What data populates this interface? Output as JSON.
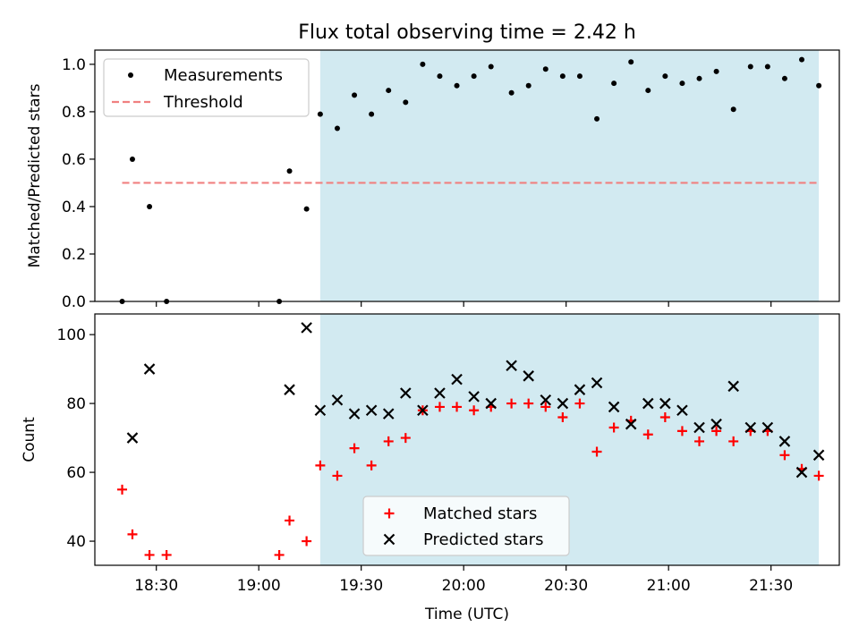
{
  "figure_title": "Flux total observing time = 2.42 h",
  "colors": {
    "shade": "#add8e6",
    "threshold": "#f08080",
    "matched": "#ff0000",
    "predicted": "#000000",
    "measurement": "#000000"
  },
  "chart_data": [
    {
      "type": "scatter",
      "panel": "top",
      "ylabel": "Matched/Predicted stars",
      "xlim": [
        "18:12",
        "21:50"
      ],
      "ylim": [
        0,
        1.06
      ],
      "yticks": [
        0.0,
        0.2,
        0.4,
        0.6,
        0.8,
        1.0
      ],
      "ytick_labels": [
        "0.0",
        "0.2",
        "0.4",
        "0.6",
        "0.8",
        "1.0"
      ],
      "shaded_region": {
        "from": "19:18",
        "to": "21:44"
      },
      "legend": {
        "location": "top-left",
        "entries": [
          "Measurements",
          "Threshold"
        ]
      },
      "threshold": {
        "name": "Threshold",
        "value": 0.5,
        "x_from": "18:20",
        "x_to": "21:44"
      },
      "series": [
        {
          "name": "Measurements",
          "x": [
            "18:20",
            "18:23",
            "18:28",
            "18:33",
            "19:06",
            "19:09",
            "19:14",
            "19:18",
            "19:23",
            "19:28",
            "19:33",
            "19:38",
            "19:43",
            "19:48",
            "19:53",
            "19:58",
            "20:03",
            "20:08",
            "20:14",
            "20:19",
            "20:24",
            "20:29",
            "20:34",
            "20:39",
            "20:44",
            "20:49",
            "20:54",
            "20:59",
            "21:04",
            "21:09",
            "21:14",
            "21:19",
            "21:24",
            "21:29",
            "21:34",
            "21:39",
            "21:44"
          ],
          "y": [
            0.0,
            0.6,
            0.4,
            0.0,
            0.0,
            0.55,
            0.39,
            0.79,
            0.73,
            0.87,
            0.79,
            0.89,
            0.84,
            1.0,
            0.95,
            0.91,
            0.95,
            0.99,
            0.88,
            0.91,
            0.98,
            0.95,
            0.95,
            0.77,
            0.92,
            1.01,
            0.89,
            0.95,
            0.92,
            0.94,
            0.97,
            0.81,
            0.99,
            0.99,
            0.94,
            1.02,
            0.91
          ]
        }
      ]
    },
    {
      "type": "scatter",
      "panel": "bottom",
      "xlabel": "Time (UTC)",
      "ylabel": "Count",
      "xlim": [
        "18:12",
        "21:50"
      ],
      "ylim": [
        33,
        106
      ],
      "yticks": [
        40,
        60,
        80,
        100
      ],
      "ytick_labels": [
        "40",
        "60",
        "80",
        "100"
      ],
      "xticks": [
        "18:30",
        "19:00",
        "19:30",
        "20:00",
        "20:30",
        "21:00",
        "21:30"
      ],
      "shaded_region": {
        "from": "19:18",
        "to": "21:44"
      },
      "legend": {
        "location": "lower-center",
        "entries": [
          "Matched stars",
          "Predicted stars"
        ]
      },
      "series": [
        {
          "name": "Matched stars",
          "marker": "plus",
          "x": [
            "18:20",
            "18:23",
            "18:28",
            "18:33",
            "19:06",
            "19:09",
            "19:14",
            "19:18",
            "19:23",
            "19:28",
            "19:33",
            "19:38",
            "19:43",
            "19:48",
            "19:53",
            "19:58",
            "20:03",
            "20:08",
            "20:14",
            "20:19",
            "20:24",
            "20:29",
            "20:34",
            "20:39",
            "20:44",
            "20:49",
            "20:54",
            "20:59",
            "21:04",
            "21:09",
            "21:14",
            "21:19",
            "21:24",
            "21:29",
            "21:34",
            "21:39",
            "21:44"
          ],
          "y": [
            55,
            42,
            36,
            36,
            36,
            46,
            40,
            62,
            59,
            67,
            62,
            69,
            70,
            78,
            79,
            79,
            78,
            79,
            80,
            80,
            79,
            76,
            80,
            66,
            73,
            75,
            71,
            76,
            72,
            69,
            72,
            69,
            72,
            72,
            65,
            61,
            59
          ]
        },
        {
          "name": "Predicted stars",
          "marker": "x",
          "x": [
            "18:23",
            "18:28",
            "19:09",
            "19:14",
            "19:18",
            "19:23",
            "19:28",
            "19:33",
            "19:38",
            "19:43",
            "19:48",
            "19:53",
            "19:58",
            "20:03",
            "20:08",
            "20:14",
            "20:19",
            "20:24",
            "20:29",
            "20:34",
            "20:39",
            "20:44",
            "20:49",
            "20:54",
            "20:59",
            "21:04",
            "21:09",
            "21:14",
            "21:19",
            "21:24",
            "21:29",
            "21:34",
            "21:39",
            "21:44"
          ],
          "y": [
            70,
            90,
            84,
            102,
            78,
            81,
            77,
            78,
            77,
            83,
            78,
            83,
            87,
            82,
            80,
            91,
            88,
            81,
            80,
            84,
            86,
            79,
            74,
            80,
            80,
            78,
            73,
            74,
            85,
            73,
            73,
            69,
            60,
            65
          ]
        }
      ]
    }
  ]
}
